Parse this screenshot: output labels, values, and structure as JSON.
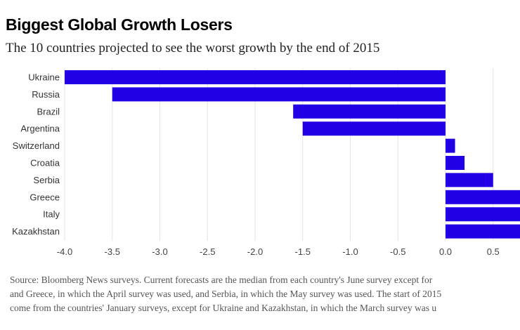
{
  "header": {
    "title": "Biggest Global Growth Losers",
    "subtitle": "The 10 countries projected to see the worst growth by the end of 2015"
  },
  "chart_data": {
    "type": "bar",
    "orientation": "horizontal",
    "categories": [
      "Ukraine",
      "Russia",
      "Brazil",
      "Argentina",
      "Switzerland",
      "Croatia",
      "Serbia",
      "Greece",
      "Italy",
      "Kazakhstan"
    ],
    "values": [
      -4.0,
      -3.5,
      -1.6,
      -1.5,
      0.1,
      0.2,
      0.5,
      0.8,
      0.8,
      0.8
    ],
    "xlim": [
      -4.0,
      0.8
    ],
    "x_ticks": [
      -4.0,
      -3.5,
      -3.0,
      -2.5,
      -2.0,
      -1.5,
      -1.0,
      -0.5,
      0.0,
      0.5
    ],
    "x_tick_labels": [
      "-4.0",
      "-3.5",
      "-3.0",
      "-2.5",
      "-2.0",
      "-1.5",
      "-1.0",
      "-0.5",
      "0.0",
      "0.5"
    ],
    "grid": true,
    "bar_color": "#2200e6",
    "grid_color": "#e3e3e3"
  },
  "source": {
    "lines": [
      "Source: Bloomberg News surveys. Current forecasts are the median from each country's June survey except for",
      "and Greece, in which the April survey was used, and Serbia, in which the May survey was used. The start of 2015",
      "come from the countries' January surveys, except for Ukraine and Kazakhstan, in which the March survey was u"
    ]
  }
}
